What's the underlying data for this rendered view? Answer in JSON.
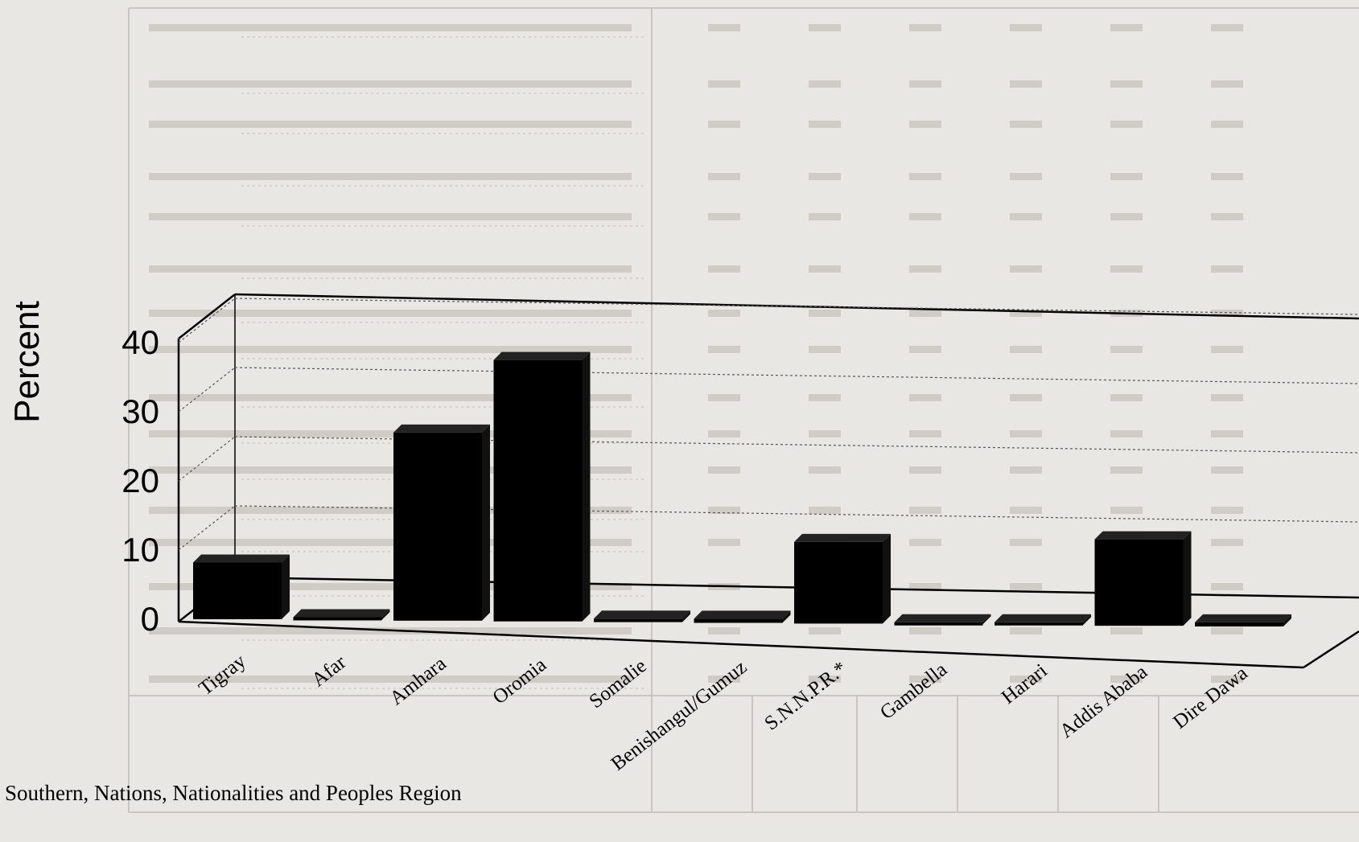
{
  "chart_data": {
    "type": "bar",
    "categories": [
      "Tigray",
      "Afar",
      "Amhara",
      "Oromia",
      "Somalie",
      "Benishangul/Gumuz",
      "S.N.N.P.R.*",
      "Gambella",
      "Harari",
      "Addis Ababa",
      "Dire Dawa"
    ],
    "values": [
      8.2,
      0.4,
      27.2,
      37.8,
      0.5,
      0.6,
      11.8,
      0.3,
      0.4,
      12.5,
      0.6
    ],
    "title": "",
    "xlabel": "",
    "ylabel": "Percent",
    "ylim": [
      0,
      40
    ],
    "yticks": [
      0,
      10,
      20,
      30,
      40
    ],
    "grid": true,
    "bar_color": "#000000",
    "style": "3d",
    "footnote": "Southern, Nations, Nationalities and Peoples Region"
  }
}
